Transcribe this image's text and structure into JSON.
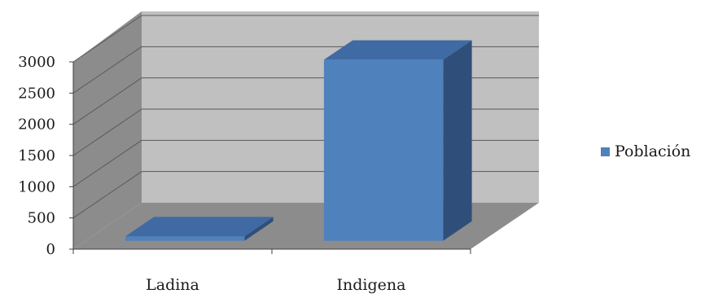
{
  "chart_data": {
    "type": "bar",
    "style": "3d-column",
    "categories": [
      "Ladina",
      "Indigena"
    ],
    "series": [
      {
        "name": "Población",
        "values": [
          70,
          2900
        ],
        "color": "#4f81bd"
      }
    ],
    "yticks": [
      "0",
      "500",
      "1000",
      "1500",
      "2000",
      "2500",
      "3000"
    ],
    "ylim": [
      0,
      3000
    ],
    "grid": true,
    "legend_position": "right",
    "colors": {
      "wall": "#c0c0c0",
      "side_wall": "#8c8c8c",
      "floor": "#8c8c8c",
      "bar_front": "#4f81bd",
      "bar_top": "#3f6aa3",
      "bar_side": "#2f4f7a"
    }
  }
}
